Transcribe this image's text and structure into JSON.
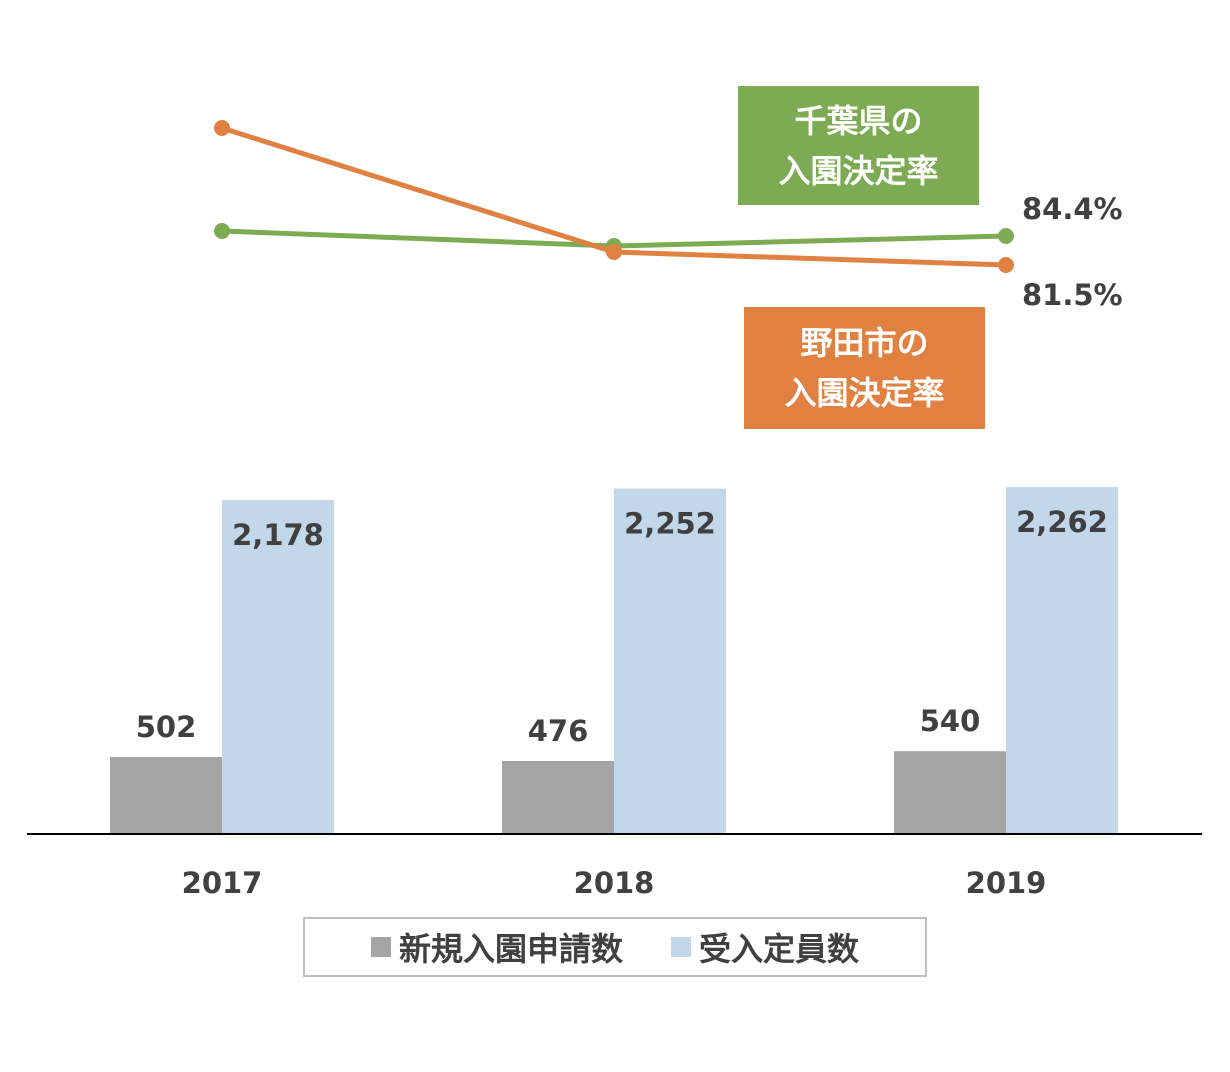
{
  "chart_data": {
    "type": "bar+line",
    "categories": [
      "2017",
      "2018",
      "2019"
    ],
    "bar_series": [
      {
        "name": "新規入園申請数",
        "values": [
          502,
          476,
          540
        ],
        "labels": [
          "502",
          "476",
          "540"
        ],
        "color": "#a5a5a5"
      },
      {
        "name": "受入定員数",
        "values": [
          2178,
          2252,
          2262
        ],
        "labels": [
          "2,178",
          "2,252",
          "2,262"
        ],
        "color": "#c3d7eb"
      }
    ],
    "line_series": [
      {
        "name": "千葉県の入園決定率",
        "label_lines": [
          "千葉県の",
          "入園決定率"
        ],
        "values": [
          84.9,
          83.4,
          84.4
        ],
        "end_label": "84.4%",
        "color": "#7dab53"
      },
      {
        "name": "野田市の入園決定率",
        "label_lines": [
          "野田市の",
          "入園決定率"
        ],
        "values": [
          95.2,
          82.8,
          81.5
        ],
        "end_label": "81.5%",
        "color": "#e08142"
      }
    ],
    "legend": {
      "placement": "bottom",
      "entries": [
        "新規入園申請数",
        "受入定員数"
      ]
    },
    "grid": false
  }
}
